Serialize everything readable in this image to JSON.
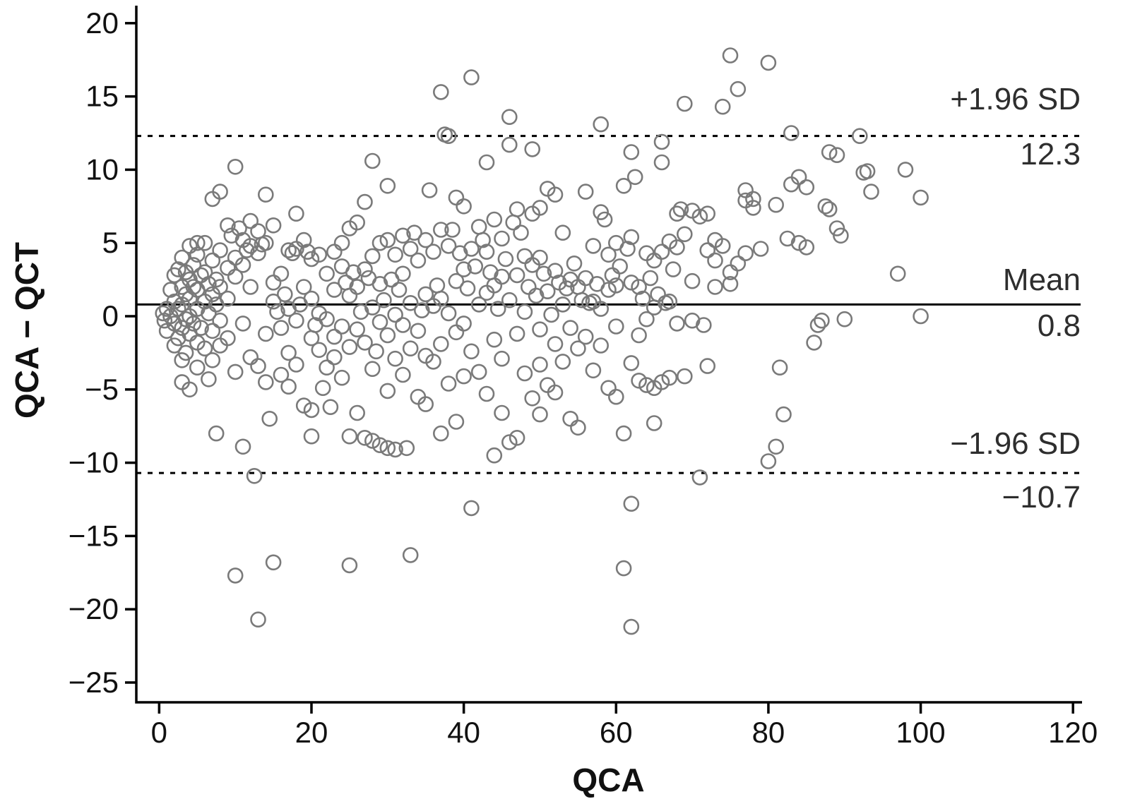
{
  "chart_data": {
    "type": "scatter",
    "title": "",
    "xlabel": "QCA",
    "ylabel": "QCA − QCT",
    "xlim": [
      -3,
      121
    ],
    "ylim": [
      -26.35,
      21.1
    ],
    "x_ticks": [
      0,
      20,
      40,
      60,
      80,
      100,
      120
    ],
    "y_ticks": [
      -25,
      -20,
      -15,
      -10,
      -5,
      0,
      5,
      10,
      15,
      20
    ],
    "grid": false,
    "legend": "none",
    "marker": {
      "shape": "open-circle",
      "stroke_color": "#7a7a7a",
      "radius_px": 10
    },
    "axis_color": "#000000",
    "reference_lines": [
      {
        "name": "upper-loa",
        "label": "+1.96 SD",
        "value_label": "12.3",
        "y": 12.3,
        "style": "dashed"
      },
      {
        "name": "mean",
        "label": "Mean",
        "value_label": "0.8",
        "y": 0.8,
        "style": "solid"
      },
      {
        "name": "lower-loa",
        "label": "−1.96 SD",
        "value_label": "−10.7",
        "y": -10.7,
        "style": "dashed"
      }
    ],
    "points": [
      [
        0.5,
        0.2
      ],
      [
        0.7,
        -0.3
      ],
      [
        1,
        0.5
      ],
      [
        1,
        -1
      ],
      [
        1.5,
        1.8
      ],
      [
        1.5,
        0
      ],
      [
        2,
        2.8
      ],
      [
        2,
        1
      ],
      [
        2,
        -0.5
      ],
      [
        2,
        -2
      ],
      [
        2.5,
        3.2
      ],
      [
        2.5,
        0.5
      ],
      [
        2.5,
        -1.5
      ],
      [
        3,
        4
      ],
      [
        3,
        2
      ],
      [
        3,
        0.8
      ],
      [
        3,
        -0.8
      ],
      [
        3,
        -3
      ],
      [
        3,
        -4.5
      ],
      [
        3.5,
        3
      ],
      [
        3.5,
        1.5
      ],
      [
        3.5,
        -0.2
      ],
      [
        3.5,
        -2.5
      ],
      [
        4,
        4.8
      ],
      [
        4,
        2.5
      ],
      [
        4,
        1.2
      ],
      [
        4,
        0
      ],
      [
        4,
        -1.2
      ],
      [
        4,
        -5
      ],
      [
        4.5,
        3.5
      ],
      [
        4.5,
        2
      ],
      [
        4.5,
        -0.5
      ],
      [
        5,
        5
      ],
      [
        5,
        4.2
      ],
      [
        5,
        1.8
      ],
      [
        5,
        0.5
      ],
      [
        5,
        -1.8
      ],
      [
        5,
        -3.5
      ],
      [
        5.5,
        2.8
      ],
      [
        5.5,
        -0.8
      ],
      [
        6,
        5
      ],
      [
        6,
        3
      ],
      [
        6,
        1
      ],
      [
        6,
        -2.2
      ],
      [
        6.5,
        2.2
      ],
      [
        6.5,
        0.2
      ],
      [
        6.5,
        -4.3
      ],
      [
        7,
        8
      ],
      [
        7,
        3.8
      ],
      [
        7,
        1.5
      ],
      [
        7,
        -1
      ],
      [
        7,
        -3
      ],
      [
        7.5,
        2.5
      ],
      [
        7.5,
        0.8
      ],
      [
        7.5,
        -8
      ],
      [
        8,
        8.5
      ],
      [
        8,
        4.5
      ],
      [
        8,
        2
      ],
      [
        8,
        -0.3
      ],
      [
        8,
        -2
      ],
      [
        9,
        6.2
      ],
      [
        9,
        3.3
      ],
      [
        9,
        1.2
      ],
      [
        9,
        -1.5
      ],
      [
        9.5,
        5.5
      ],
      [
        10,
        10.2
      ],
      [
        10,
        4
      ],
      [
        10,
        2.7
      ],
      [
        10,
        -3.8
      ],
      [
        10,
        -17.7
      ],
      [
        10.5,
        6
      ],
      [
        11,
        5.2
      ],
      [
        11,
        3.5
      ],
      [
        11,
        -0.5
      ],
      [
        11,
        -8.9
      ],
      [
        11.5,
        4.5
      ],
      [
        12,
        6.5
      ],
      [
        12,
        4.8
      ],
      [
        12,
        2
      ],
      [
        12,
        -2.8
      ],
      [
        12.5,
        -10.9
      ],
      [
        13,
        5.8
      ],
      [
        13,
        4.3
      ],
      [
        13,
        -3.4
      ],
      [
        13,
        -20.7
      ],
      [
        13.5,
        4.9
      ],
      [
        14,
        8.3
      ],
      [
        14,
        5
      ],
      [
        14,
        -1.2
      ],
      [
        14,
        -4.5
      ],
      [
        14.5,
        -7
      ],
      [
        15,
        6.2
      ],
      [
        15,
        2.3
      ],
      [
        15,
        -16.8
      ],
      [
        15,
        1
      ],
      [
        15.5,
        0.3
      ],
      [
        16,
        2.9
      ],
      [
        16,
        -0.8
      ],
      [
        16,
        -4
      ],
      [
        16.5,
        1.5
      ],
      [
        17,
        4.5
      ],
      [
        17,
        0.5
      ],
      [
        17,
        -2.5
      ],
      [
        17,
        -4.8
      ],
      [
        17.5,
        4.3
      ],
      [
        18,
        7
      ],
      [
        18,
        4.6
      ],
      [
        18,
        -0.3
      ],
      [
        18,
        -3.3
      ],
      [
        18.5,
        0.8
      ],
      [
        19,
        5.2
      ],
      [
        19,
        2
      ],
      [
        19,
        -6.1
      ],
      [
        19.5,
        4.4
      ],
      [
        20,
        3.9
      ],
      [
        20,
        1.2
      ],
      [
        20,
        -1.5
      ],
      [
        20,
        -6.4
      ],
      [
        20,
        -8.2
      ],
      [
        20.5,
        -0.6
      ],
      [
        21,
        4.2
      ],
      [
        21,
        0.2
      ],
      [
        21,
        -2.3
      ],
      [
        21.5,
        -4.9
      ],
      [
        22,
        2.9
      ],
      [
        22,
        -0.2
      ],
      [
        22,
        -3.5
      ],
      [
        22.5,
        -6.2
      ],
      [
        23,
        4.4
      ],
      [
        23,
        1.8
      ],
      [
        23,
        -1.4
      ],
      [
        23,
        -2.8
      ],
      [
        24,
        5
      ],
      [
        24,
        3.4
      ],
      [
        24,
        -0.7
      ],
      [
        24,
        -4.2
      ],
      [
        24.5,
        2.3
      ],
      [
        25,
        6
      ],
      [
        25,
        1.4
      ],
      [
        25,
        -2.1
      ],
      [
        25,
        -8.2
      ],
      [
        25,
        -17
      ],
      [
        25.5,
        3
      ],
      [
        26,
        6.4
      ],
      [
        26,
        2
      ],
      [
        26,
        -0.9
      ],
      [
        26,
        -6.6
      ],
      [
        26.5,
        0.3
      ],
      [
        27,
        7.8
      ],
      [
        27,
        3.2
      ],
      [
        27,
        -1.8
      ],
      [
        27,
        -8.3
      ],
      [
        27.5,
        2.6
      ],
      [
        28,
        10.6
      ],
      [
        28,
        4.1
      ],
      [
        28,
        0.6
      ],
      [
        28,
        -3.6
      ],
      [
        28,
        -8.5
      ],
      [
        28.5,
        -2.4
      ],
      [
        29,
        5
      ],
      [
        29,
        2.2
      ],
      [
        29,
        -0.4
      ],
      [
        29,
        -8.8
      ],
      [
        29.5,
        1.1
      ],
      [
        30,
        8.9
      ],
      [
        30,
        5.2
      ],
      [
        30,
        -1.3
      ],
      [
        30,
        -5.1
      ],
      [
        30,
        -9
      ],
      [
        30.5,
        2.5
      ],
      [
        31,
        4.2
      ],
      [
        31,
        0.1
      ],
      [
        31,
        -2.9
      ],
      [
        31,
        -9.1
      ],
      [
        31.5,
        1.8
      ],
      [
        32,
        5.5
      ],
      [
        32,
        2.9
      ],
      [
        32,
        -0.6
      ],
      [
        32,
        -4
      ],
      [
        32.5,
        -9
      ],
      [
        33,
        4.6
      ],
      [
        33,
        0.9
      ],
      [
        33,
        -2.2
      ],
      [
        33,
        -16.3
      ],
      [
        33.5,
        5.7
      ],
      [
        34,
        3.8
      ],
      [
        34,
        -1
      ],
      [
        34,
        -5.5
      ],
      [
        34.5,
        0.4
      ],
      [
        35,
        5.2
      ],
      [
        35,
        1.5
      ],
      [
        35,
        -2.7
      ],
      [
        35,
        -6
      ],
      [
        35.5,
        8.6
      ],
      [
        36,
        4.4
      ],
      [
        36,
        0.7
      ],
      [
        36,
        -3.1
      ],
      [
        36.5,
        2.1
      ],
      [
        37,
        15.3
      ],
      [
        37,
        5.9
      ],
      [
        37,
        1.2
      ],
      [
        37,
        -1.9
      ],
      [
        37,
        -8
      ],
      [
        37.5,
        12.4
      ],
      [
        38,
        12.3
      ],
      [
        38,
        4.8
      ],
      [
        38,
        0.2
      ],
      [
        38,
        -4.6
      ],
      [
        38.5,
        5.9
      ],
      [
        39,
        8.1
      ],
      [
        39,
        2.4
      ],
      [
        39,
        -1.1
      ],
      [
        39,
        -7.2
      ],
      [
        39.5,
        4.3
      ],
      [
        40,
        7.5
      ],
      [
        40,
        3.2
      ],
      [
        40,
        -0.5
      ],
      [
        40,
        -4.1
      ],
      [
        40.5,
        1.9
      ],
      [
        41,
        16.3
      ],
      [
        41,
        4.6
      ],
      [
        41,
        -2.4
      ],
      [
        41,
        -13.1
      ],
      [
        41.5,
        3.4
      ],
      [
        42,
        6.1
      ],
      [
        42,
        0.8
      ],
      [
        42,
        -3.8
      ],
      [
        42.5,
        5.2
      ],
      [
        43,
        10.5
      ],
      [
        43,
        4.4
      ],
      [
        43,
        1.6
      ],
      [
        43,
        -5.3
      ],
      [
        43.5,
        3
      ],
      [
        44,
        6.6
      ],
      [
        44,
        2.1
      ],
      [
        44,
        -1.6
      ],
      [
        44,
        -9.5
      ],
      [
        44.5,
        0.5
      ],
      [
        45,
        5.3
      ],
      [
        45,
        2.7
      ],
      [
        45,
        -2.9
      ],
      [
        45,
        -6.6
      ],
      [
        45.5,
        3.9
      ],
      [
        46,
        13.6
      ],
      [
        46,
        11.7
      ],
      [
        46,
        1.1
      ],
      [
        46,
        -8.6
      ],
      [
        46.5,
        6.4
      ],
      [
        47,
        7.3
      ],
      [
        47,
        2.8
      ],
      [
        47,
        -1.2
      ],
      [
        47,
        -8.3
      ],
      [
        47.5,
        5.7
      ],
      [
        48,
        4.1
      ],
      [
        48,
        0.3
      ],
      [
        48,
        -3.9
      ],
      [
        48.5,
        2
      ],
      [
        49,
        11.4
      ],
      [
        49,
        7
      ],
      [
        49,
        3.5
      ],
      [
        49,
        -5.6
      ],
      [
        49.5,
        1.4
      ],
      [
        50,
        7.4
      ],
      [
        50,
        4
      ],
      [
        50,
        -0.9
      ],
      [
        50,
        -6.7
      ],
      [
        50,
        -3.3
      ],
      [
        50.5,
        2.9
      ],
      [
        51,
        8.7
      ],
      [
        51,
        1.7
      ],
      [
        51,
        -4.7
      ],
      [
        51.5,
        0.1
      ],
      [
        52,
        8.3
      ],
      [
        52,
        3.1
      ],
      [
        52,
        -1.9
      ],
      [
        52,
        -5.2
      ],
      [
        52.5,
        2.3
      ],
      [
        53,
        5.7
      ],
      [
        53,
        0.8
      ],
      [
        53,
        -3.1
      ],
      [
        53.5,
        1.9
      ],
      [
        54,
        2.5
      ],
      [
        54,
        -0.8
      ],
      [
        54,
        -7
      ],
      [
        54.5,
        3.6
      ],
      [
        55,
        2
      ],
      [
        55,
        -2.2
      ],
      [
        55,
        -7.6
      ],
      [
        55.5,
        1.1
      ],
      [
        56,
        8.5
      ],
      [
        56,
        2.6
      ],
      [
        56,
        -1.4
      ],
      [
        56.5,
        0.9
      ],
      [
        57,
        4.8
      ],
      [
        57,
        1
      ],
      [
        57,
        -3.7
      ],
      [
        57.5,
        2.2
      ],
      [
        58,
        13.1
      ],
      [
        58,
        7.1
      ],
      [
        58,
        0.5
      ],
      [
        58,
        -2
      ],
      [
        58.5,
        6.6
      ],
      [
        59,
        4.2
      ],
      [
        59,
        1.8
      ],
      [
        59,
        -4.9
      ],
      [
        59.5,
        2.8
      ],
      [
        60,
        5
      ],
      [
        60,
        2.1
      ],
      [
        60,
        -0.7
      ],
      [
        60,
        -5.5
      ],
      [
        60.5,
        3.4
      ],
      [
        61,
        8.9
      ],
      [
        61,
        -8
      ],
      [
        61,
        -17.2
      ],
      [
        61.5,
        4.6
      ],
      [
        62,
        11.2
      ],
      [
        62,
        5.4
      ],
      [
        62,
        2.3
      ],
      [
        62,
        -3.2
      ],
      [
        62,
        -12.8
      ],
      [
        62,
        -21.2
      ],
      [
        62.5,
        9.5
      ],
      [
        63,
        2
      ],
      [
        63,
        -1.3
      ],
      [
        63,
        -4.4
      ],
      [
        63.5,
        1.2
      ],
      [
        64,
        4.3
      ],
      [
        64,
        -0.2
      ],
      [
        64,
        -4.7
      ],
      [
        64.5,
        2.6
      ],
      [
        65,
        3.8
      ],
      [
        65,
        0.6
      ],
      [
        65,
        -4.9
      ],
      [
        65,
        -7.3
      ],
      [
        65.5,
        1.5
      ],
      [
        66,
        11.9
      ],
      [
        66,
        10.5
      ],
      [
        66,
        4.4
      ],
      [
        66,
        -4.5
      ],
      [
        66.5,
        0.9
      ],
      [
        67,
        5.1
      ],
      [
        67,
        1
      ],
      [
        67,
        -4.2
      ],
      [
        67.5,
        3.2
      ],
      [
        68,
        7
      ],
      [
        68,
        4.7
      ],
      [
        68,
        -0.5
      ],
      [
        68.5,
        7.3
      ],
      [
        69,
        14.5
      ],
      [
        69,
        5.6
      ],
      [
        69,
        -4.1
      ],
      [
        70,
        7.2
      ],
      [
        70,
        2.4
      ],
      [
        70,
        -0.3
      ],
      [
        71,
        6.8
      ],
      [
        71,
        -11
      ],
      [
        71.5,
        -0.6
      ],
      [
        72,
        7
      ],
      [
        72,
        4.5
      ],
      [
        72,
        -3.4
      ],
      [
        73,
        5.2
      ],
      [
        73,
        3.8
      ],
      [
        73,
        2
      ],
      [
        74,
        14.3
      ],
      [
        74,
        4.8
      ],
      [
        75,
        17.8
      ],
      [
        75,
        3
      ],
      [
        75,
        2.2
      ],
      [
        76,
        15.5
      ],
      [
        76,
        3.6
      ],
      [
        77,
        8.6
      ],
      [
        77,
        7.9
      ],
      [
        77,
        4.3
      ],
      [
        78,
        8
      ],
      [
        78,
        7.4
      ],
      [
        79,
        4.6
      ],
      [
        80,
        17.3
      ],
      [
        80,
        -9.9
      ],
      [
        81,
        7.6
      ],
      [
        81,
        -8.9
      ],
      [
        81.5,
        -3.5
      ],
      [
        82,
        -6.7
      ],
      [
        82.5,
        5.3
      ],
      [
        83,
        12.5
      ],
      [
        83,
        9
      ],
      [
        84,
        9.5
      ],
      [
        84,
        5
      ],
      [
        85,
        8.8
      ],
      [
        85,
        4.7
      ],
      [
        86,
        -1.8
      ],
      [
        86.5,
        -0.6
      ],
      [
        87,
        -0.3
      ],
      [
        87.5,
        7.5
      ],
      [
        88,
        11.2
      ],
      [
        88,
        7.3
      ],
      [
        89,
        11
      ],
      [
        89,
        6
      ],
      [
        89.5,
        5.5
      ],
      [
        90,
        -0.2
      ],
      [
        92,
        12.3
      ],
      [
        92.5,
        9.8
      ],
      [
        93,
        9.9
      ],
      [
        93.5,
        8.5
      ],
      [
        97,
        2.9
      ],
      [
        98,
        10
      ],
      [
        100,
        8.1
      ],
      [
        100,
        0
      ]
    ]
  }
}
